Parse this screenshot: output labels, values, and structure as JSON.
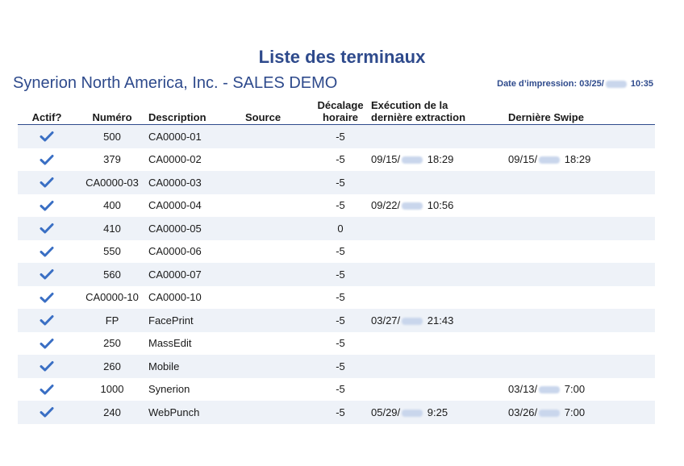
{
  "report": {
    "title": "Liste des terminaux",
    "company": "Synerion North America, Inc. - SALES DEMO",
    "print_date_prefix": "Date d’impression: 03/25/",
    "print_date_suffix": " 10:35"
  },
  "columns": {
    "actif": "Actif?",
    "numero": "Numéro",
    "description": "Description",
    "source": "Source",
    "decalage": "Décalage horaire",
    "execution": "Exécution de la dernière extraction",
    "swipe": "Dernière Swipe"
  },
  "colors": {
    "accent": "#2e4a8c",
    "check": "#3a6fc4",
    "stripe": "#eef2f8"
  },
  "rows": [
    {
      "actif": true,
      "numero": "500",
      "description": "CA0000-01",
      "source": "",
      "decalage": "-5",
      "exec_a": "",
      "exec_b": "",
      "swipe_a": "",
      "swipe_b": ""
    },
    {
      "actif": true,
      "numero": "379",
      "description": "CA0000-02",
      "source": "",
      "decalage": "-5",
      "exec_a": "09/15/",
      "exec_b": " 18:29",
      "swipe_a": "09/15/",
      "swipe_b": " 18:29"
    },
    {
      "actif": true,
      "numero": "CA0000-03",
      "description": "CA0000-03",
      "source": "",
      "decalage": "-5",
      "exec_a": "",
      "exec_b": "",
      "swipe_a": "",
      "swipe_b": ""
    },
    {
      "actif": true,
      "numero": "400",
      "description": "CA0000-04",
      "source": "",
      "decalage": "-5",
      "exec_a": "09/22/",
      "exec_b": " 10:56",
      "swipe_a": "",
      "swipe_b": ""
    },
    {
      "actif": true,
      "numero": "410",
      "description": "CA0000-05",
      "source": "",
      "decalage": "0",
      "exec_a": "",
      "exec_b": "",
      "swipe_a": "",
      "swipe_b": ""
    },
    {
      "actif": true,
      "numero": "550",
      "description": "CA0000-06",
      "source": "",
      "decalage": "-5",
      "exec_a": "",
      "exec_b": "",
      "swipe_a": "",
      "swipe_b": ""
    },
    {
      "actif": true,
      "numero": "560",
      "description": "CA0000-07",
      "source": "",
      "decalage": "-5",
      "exec_a": "",
      "exec_b": "",
      "swipe_a": "",
      "swipe_b": ""
    },
    {
      "actif": true,
      "numero": "CA0000-10",
      "description": "CA0000-10",
      "source": "",
      "decalage": "-5",
      "exec_a": "",
      "exec_b": "",
      "swipe_a": "",
      "swipe_b": ""
    },
    {
      "actif": true,
      "numero": "FP",
      "description": "FacePrint",
      "source": "",
      "decalage": "-5",
      "exec_a": "03/27/",
      "exec_b": " 21:43",
      "swipe_a": "",
      "swipe_b": ""
    },
    {
      "actif": true,
      "numero": "250",
      "description": "MassEdit",
      "source": "",
      "decalage": "-5",
      "exec_a": "",
      "exec_b": "",
      "swipe_a": "",
      "swipe_b": ""
    },
    {
      "actif": true,
      "numero": "260",
      "description": "Mobile",
      "source": "",
      "decalage": "-5",
      "exec_a": "",
      "exec_b": "",
      "swipe_a": "",
      "swipe_b": ""
    },
    {
      "actif": true,
      "numero": "1000",
      "description": "Synerion",
      "source": "",
      "decalage": "-5",
      "exec_a": "",
      "exec_b": "",
      "swipe_a": "03/13/",
      "swipe_b": " 7:00"
    },
    {
      "actif": true,
      "numero": "240",
      "description": "WebPunch",
      "source": "",
      "decalage": "-5",
      "exec_a": "05/29/",
      "exec_b": " 9:25",
      "swipe_a": "03/26/",
      "swipe_b": " 7:00"
    }
  ]
}
